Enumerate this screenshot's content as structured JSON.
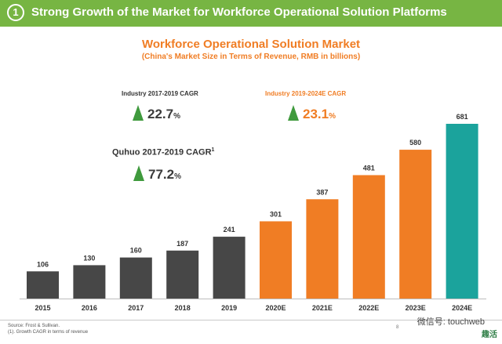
{
  "header": {
    "section_number": "1",
    "title": "Strong Growth of the Market for Workforce Operational Solution Platforms"
  },
  "chart_heading": {
    "title": "Workforce Operational Solution Market",
    "subtitle": "(China's Market Size in Terms of Revenue,  RMB  in billions)"
  },
  "stats": {
    "industry_hist": {
      "label": "Industry 2017-2019 CAGR",
      "value": "22.7",
      "unit": "%"
    },
    "industry_fcst": {
      "label": "Industry 2019-2024E CAGR",
      "value": "23.1",
      "unit": "%"
    },
    "quhuo": {
      "label": "Quhuo 2017-2019 CAGR",
      "sup": "1",
      "value": "77.2",
      "unit": "%"
    }
  },
  "colors": {
    "header_green": "#77b543",
    "accent_orange": "#f07d24",
    "historic_gray": "#474747",
    "forecast_orange": "#f07d24",
    "final_teal": "#1ba39c",
    "arrow_green": "#3f9a3d"
  },
  "chart_data": {
    "type": "bar",
    "categories": [
      "2015",
      "2016",
      "2017",
      "2018",
      "2019",
      "2020E",
      "2021E",
      "2022E",
      "2023E",
      "2024E"
    ],
    "values": [
      106,
      130,
      160,
      187,
      241,
      301,
      387,
      481,
      580,
      681
    ],
    "bar_colors": [
      "#474747",
      "#474747",
      "#474747",
      "#474747",
      "#474747",
      "#f07d24",
      "#f07d24",
      "#f07d24",
      "#f07d24",
      "#1ba39c"
    ],
    "ylim": [
      0,
      700
    ],
    "title": "Workforce Operational Solution Market",
    "subtitle": "(China's Market Size in Terms of Revenue,  RMB  in billions)",
    "xlabel": "",
    "ylabel": "",
    "grid": false,
    "legend": "none"
  },
  "footer": {
    "source": "Source: Frost & Sullivan.",
    "note": "(1). Growth CAGR in terms of revenue",
    "page_number": "8"
  },
  "watermark": {
    "text": "微信号: touchweb"
  },
  "logo": {
    "text": "趣活"
  }
}
